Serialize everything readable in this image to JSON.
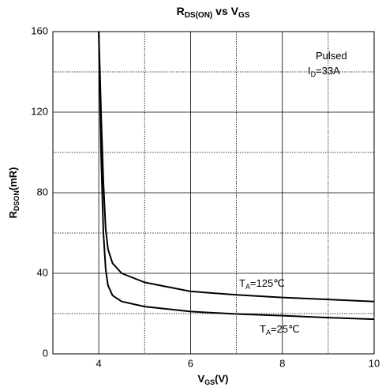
{
  "chart_data": {
    "type": "line",
    "title": [
      {
        "text": "R"
      },
      {
        "text": "DS(ON)",
        "sub": true
      },
      {
        "text": " vs V"
      },
      {
        "text": "GS",
        "sub": true
      }
    ],
    "x_label": [
      {
        "text": "V"
      },
      {
        "text": "GS",
        "sub": true
      },
      {
        "text": "(V)"
      }
    ],
    "y_label": [
      {
        "text": "R"
      },
      {
        "text": "DSON",
        "sub": true
      },
      {
        "text": "(mR)"
      }
    ],
    "annotations": [
      [
        {
          "text": "Pulsed"
        }
      ],
      [
        {
          "text": "I"
        },
        {
          "text": "D",
          "sub": true
        },
        {
          "text": "=33A"
        }
      ]
    ],
    "x": [
      4.0,
      4.05,
      4.1,
      4.15,
      4.2,
      4.3,
      4.5,
      5,
      6,
      7,
      8,
      9,
      10
    ],
    "series": [
      {
        "label": [
          {
            "text": "T"
          },
          {
            "text": "A",
            "sub": true
          },
          {
            "text": "=125℃"
          }
        ],
        "color": "#000000",
        "values": [
          160,
          120,
          85,
          62,
          52,
          45,
          40,
          35.5,
          31,
          29.3,
          28,
          27,
          26
        ]
      },
      {
        "label": [
          {
            "text": "T"
          },
          {
            "text": "A",
            "sub": true
          },
          {
            "text": "=25℃"
          }
        ],
        "color": "#000000",
        "values": [
          160,
          100,
          60,
          42,
          34,
          29,
          26,
          23.5,
          21,
          19.8,
          19,
          18,
          17.2
        ]
      }
    ],
    "xlim": [
      3,
      10
    ],
    "ylim": [
      0,
      160
    ],
    "xticks": [
      4,
      6,
      8,
      10
    ],
    "yticks": [
      0,
      40,
      80,
      120,
      160
    ],
    "minor_xticks": [
      5,
      7,
      9
    ],
    "minor_yticks": [
      20,
      60,
      100,
      140
    ],
    "grid": true
  }
}
